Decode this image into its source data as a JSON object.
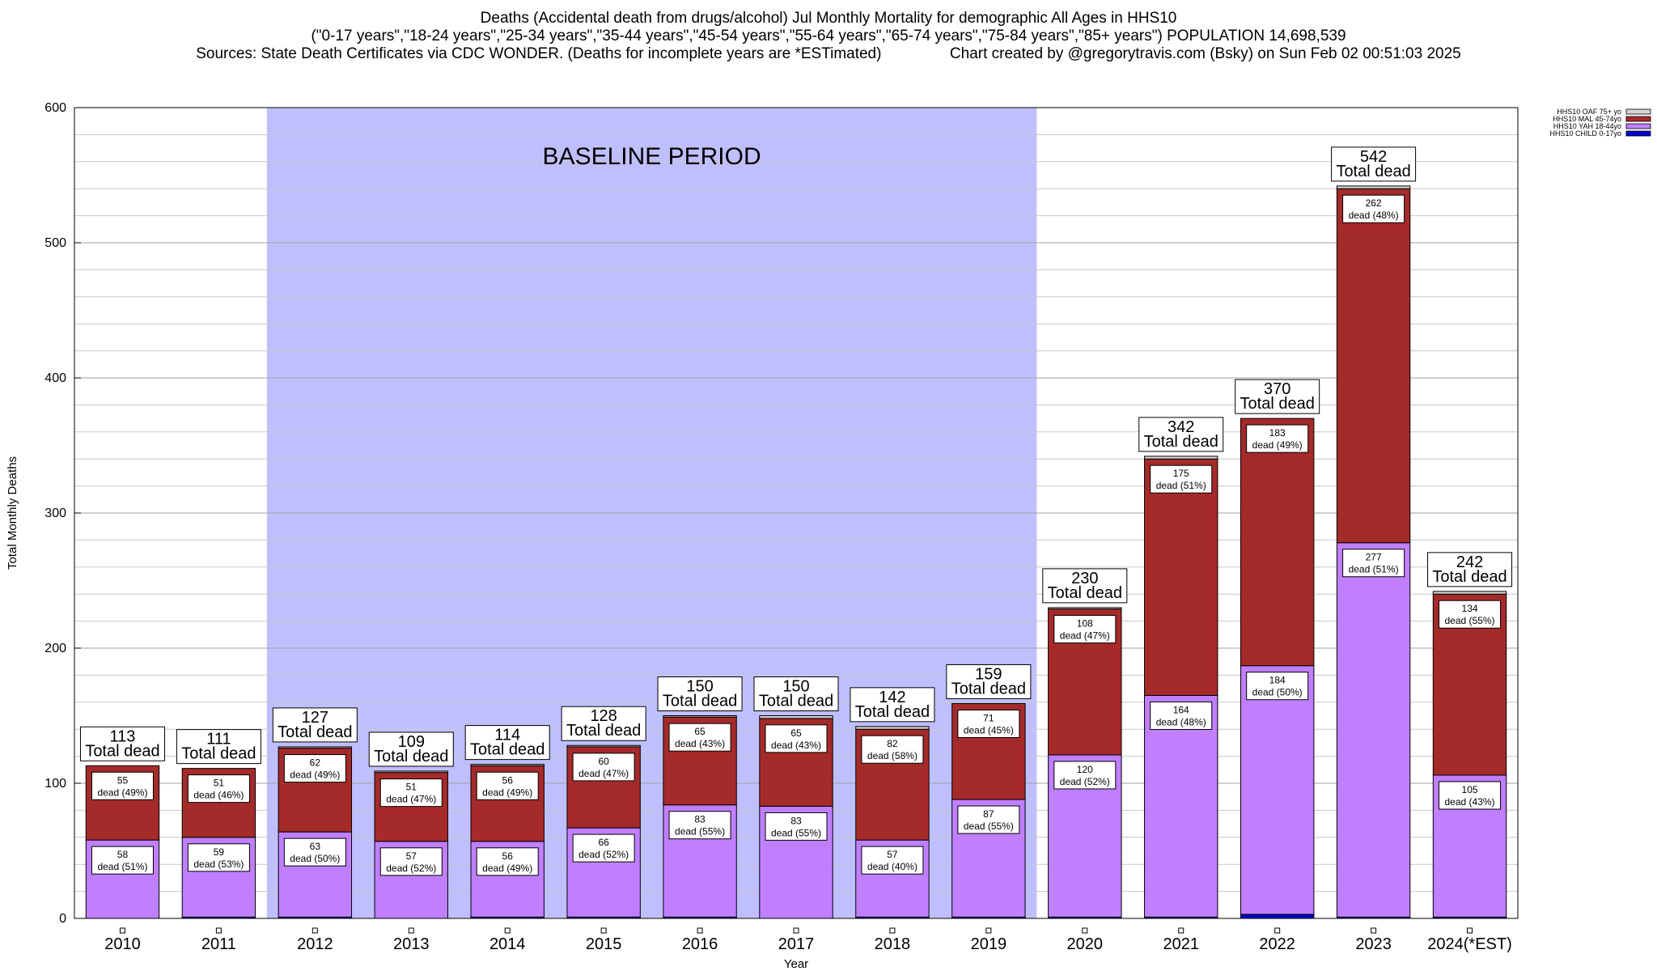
{
  "chart_data": {
    "type": "bar",
    "stacked": true,
    "title_lines": [
      "Deaths (Accidental death from drugs/alcohol) Jul Monthly Mortality for demographic All Ages in HHS10",
      "(\"0-17 years\",\"18-24 years\",\"25-34 years\",\"35-44 years\",\"45-54 years\",\"55-64 years\",\"65-74 years\",\"75-84 years\",\"85+ years\") POPULATION 14,698,539",
      "Sources: State Death Certificates via CDC WONDER. (Deaths for incomplete years are *ESTimated)                Chart created by @gregorytravis.com (Bsky) on Sun Feb 02 00:51:03 2025"
    ],
    "xlabel": "Year",
    "ylabel": "Total Monthly Deaths",
    "ylim": [
      0,
      600
    ],
    "yticks": [
      0,
      100,
      200,
      300,
      400,
      500,
      600
    ],
    "grid": true,
    "legend_position": "top-right",
    "baseline_label": "BASELINE PERIOD",
    "baseline_range": [
      "2012",
      "2019"
    ],
    "categories": [
      "2010",
      "2011",
      "2012",
      "2013",
      "2014",
      "2015",
      "2016",
      "2017",
      "2018",
      "2019",
      "2020",
      "2021",
      "2022",
      "2023",
      "2024(*EST)"
    ],
    "series": [
      {
        "name": "HHS10 CHILD 0-17yo",
        "color": "#0000cc",
        "values": [
          0,
          1,
          1,
          0,
          1,
          1,
          1,
          0,
          1,
          1,
          1,
          1,
          3,
          1,
          1
        ]
      },
      {
        "name": "HHS10 YAH 18-44yo",
        "color": "#bf7fff",
        "values": [
          58,
          59,
          63,
          57,
          56,
          66,
          83,
          83,
          57,
          87,
          120,
          164,
          184,
          277,
          105
        ]
      },
      {
        "name": "HHS10 MAL 45-74yo",
        "color": "#a52a2a",
        "values": [
          55,
          51,
          62,
          51,
          56,
          60,
          65,
          65,
          82,
          71,
          108,
          175,
          183,
          262,
          134
        ]
      },
      {
        "name": "HHS10 OAF 75+ yo",
        "color": "#d3d3d3",
        "values": [
          0,
          0,
          1,
          1,
          1,
          1,
          1,
          2,
          2,
          0,
          1,
          2,
          0,
          2,
          2
        ]
      }
    ],
    "totals": [
      113,
      111,
      127,
      109,
      114,
      128,
      150,
      150,
      142,
      159,
      230,
      342,
      370,
      542,
      242
    ],
    "total_label_suffix": "Total dead",
    "segment_labels": {
      "yah": [
        "58\ndead (51%)",
        "59\ndead (53%)",
        "63\ndead (50%)",
        "57\ndead (52%)",
        "56\ndead (49%)",
        "66\ndead (52%)",
        "83\ndead (55%)",
        "83\ndead (55%)",
        "57\ndead (40%)",
        "87\ndead (55%)",
        "120\ndead (52%)",
        "164\ndead (48%)",
        "184\ndead (50%)",
        "277\ndead (51%)",
        "105\ndead (43%)"
      ],
      "mal": [
        "55\ndead (49%)",
        "51\ndead (46%)",
        "62\ndead (49%)",
        "51\ndead (47%)",
        "56\ndead (49%)",
        "60\ndead (47%)",
        "65\ndead (43%)",
        "65\ndead (43%)",
        "82\ndead (58%)",
        "71\ndead (45%)",
        "108\ndead (47%)",
        "175\ndead (51%)",
        "183\ndead (49%)",
        "262\ndead (48%)",
        "134\ndead (55%)"
      ]
    }
  }
}
